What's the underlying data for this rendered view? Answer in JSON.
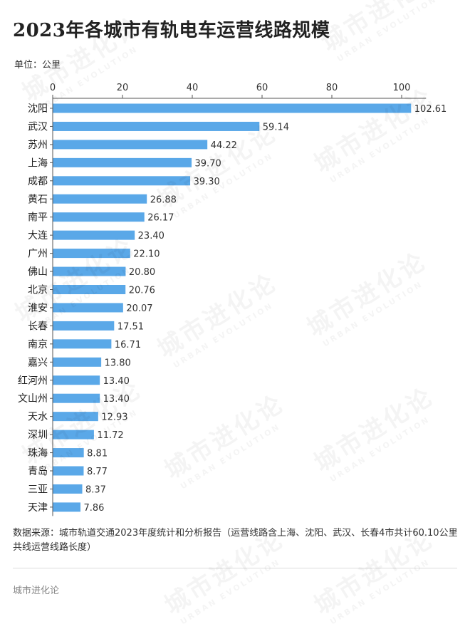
{
  "title": "2023年各城市有轨电车运营线路规模",
  "unit": "单位：公里",
  "source": "数据来源：城市轨道交通2023年度统计和分析报告（运营线路含上海、沈阳、武汉、长春4市共计60.10公里共线运营线路长度）",
  "brand": "城市进化论",
  "watermark": {
    "cn": "城市进化论",
    "en": "URBAN EVOLUTION"
  },
  "chart_data": {
    "type": "bar",
    "orientation": "horizontal",
    "categories": [
      "沈阳",
      "武汉",
      "苏州",
      "上海",
      "成都",
      "黄石",
      "南平",
      "大连",
      "广州",
      "佛山",
      "北京",
      "淮安",
      "长春",
      "南京",
      "嘉兴",
      "红河州",
      "文山州",
      "天水",
      "深圳",
      "珠海",
      "青岛",
      "三亚",
      "天津"
    ],
    "values": [
      102.61,
      59.14,
      44.22,
      39.7,
      39.3,
      26.88,
      26.17,
      23.4,
      22.1,
      20.8,
      20.76,
      20.07,
      17.51,
      16.71,
      13.8,
      13.4,
      13.4,
      12.93,
      11.72,
      8.81,
      8.77,
      8.37,
      7.86
    ],
    "value_labels": [
      "102.61",
      "59.14",
      "44.22",
      "39.70",
      "39.30",
      "26.88",
      "26.17",
      "23.40",
      "22.10",
      "20.80",
      "20.76",
      "20.07",
      "17.51",
      "16.71",
      "13.80",
      "13.40",
      "13.40",
      "12.93",
      "11.72",
      "8.81",
      "8.77",
      "8.37",
      "7.86"
    ],
    "xticks": [
      0,
      20,
      40,
      60,
      80,
      100
    ],
    "xlim": [
      0,
      107
    ],
    "axis_position": "top",
    "bar_color": "#5aa8e8",
    "grid": false
  }
}
